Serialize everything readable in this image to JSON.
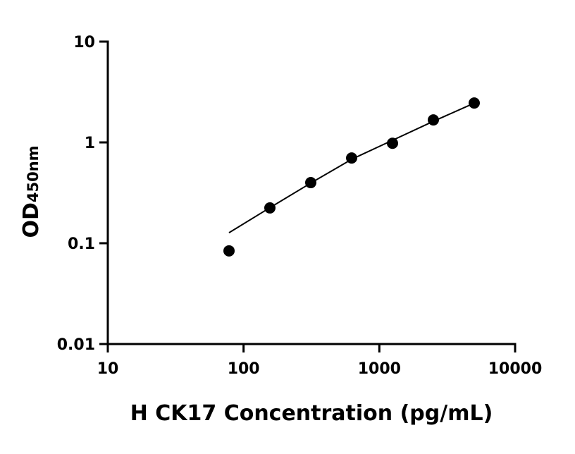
{
  "chart_data": {
    "type": "scatter",
    "x_label": "H CK17 Concentration (pg/mL)",
    "y_label": "OD",
    "y_label_sub": "450nm",
    "x": [
      78.125,
      156.25,
      312.5,
      625,
      1250,
      2500,
      5000
    ],
    "series": [
      {
        "type": "scatter",
        "color": "#000000",
        "values": [
          0.084,
          0.224,
          0.399,
          0.7,
          0.98,
          1.67,
          2.46
        ]
      },
      {
        "type": "line",
        "color": "#000000",
        "values": [
          0.127,
          0.225,
          0.395,
          0.68,
          1.05,
          1.62,
          2.45
        ]
      }
    ],
    "xlim": [
      10,
      10000
    ],
    "xticks": [
      10,
      100,
      1000,
      10000
    ],
    "ylim": [
      0.01,
      10
    ],
    "yticks": [
      0.01,
      0.1,
      1,
      10
    ],
    "x_log": true,
    "y_log": true,
    "grid": false
  }
}
